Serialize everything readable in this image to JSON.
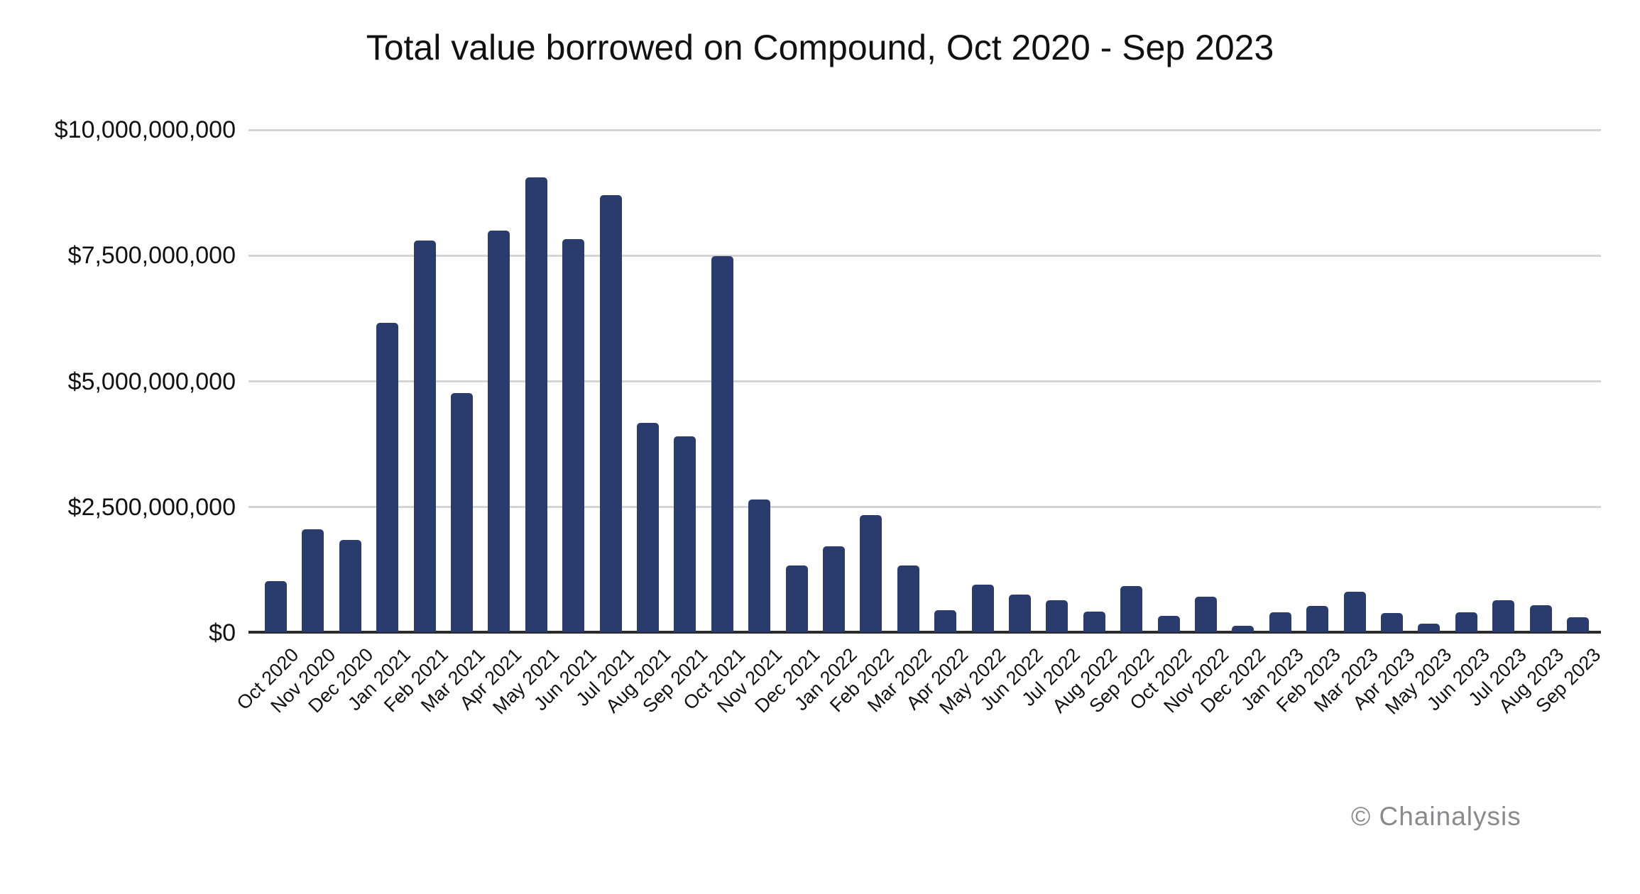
{
  "page": {
    "attribution": "© Chainalysis"
  },
  "chart_data": {
    "type": "bar",
    "title": "Total value borrowed on Compound, Oct 2020 - Sep 2023",
    "unit": "USD",
    "categories": [
      "Oct 2020",
      "Nov 2020",
      "Dec 2020",
      "Jan 2021",
      "Feb 2021",
      "Mar 2021",
      "Apr 2021",
      "May 2021",
      "Jun 2021",
      "Jul 2021",
      "Aug 2021",
      "Sep 2021",
      "Oct 2021",
      "Nov 2021",
      "Dec 2021",
      "Jan 2022",
      "Feb 2022",
      "Mar 2022",
      "Apr 2022",
      "May 2022",
      "Jun 2022",
      "Jul 2022",
      "Aug 2022",
      "Sep 2022",
      "Oct 2022",
      "Nov 2022",
      "Dec 2022",
      "Jan 2023",
      "Feb 2023",
      "Mar 2023",
      "Apr 2023",
      "May 2023",
      "Jun 2023",
      "Jul 2023",
      "Aug 2023",
      "Sep 2023"
    ],
    "values_usd_billions": [
      1.01,
      2.04,
      1.84,
      6.15,
      7.78,
      4.75,
      7.98,
      9.04,
      7.81,
      8.69,
      4.16,
      3.89,
      7.47,
      2.64,
      1.32,
      1.71,
      2.33,
      1.32,
      0.44,
      0.94,
      0.75,
      0.63,
      0.41,
      0.92,
      0.33,
      0.71,
      0.13,
      0.39,
      0.52,
      0.81,
      0.38,
      0.17,
      0.39,
      0.64,
      0.54,
      0.3
    ],
    "ylim_usd_billions": [
      0,
      10
    ],
    "y_ticks": [
      {
        "label": "$0",
        "value_billions": 0
      },
      {
        "label": "$2,500,000,000",
        "value_billions": 2.5
      },
      {
        "label": "$5,000,000,000",
        "value_billions": 5
      },
      {
        "label": "$7,500,000,000",
        "value_billions": 7.5
      },
      {
        "label": "$10,000,000,000",
        "value_billions": 10
      }
    ],
    "xlabel": "",
    "ylabel": "",
    "grid": "horizontal",
    "legend": "none",
    "x_tick_rotation_deg": -45,
    "colors": {
      "bar": "#2a3b6d",
      "gridline": "#d5d5d5",
      "axis_line": "#2b2b2b",
      "text": "#111111",
      "attribution_text": "#8a8a8e",
      "background": "#ffffff"
    }
  }
}
